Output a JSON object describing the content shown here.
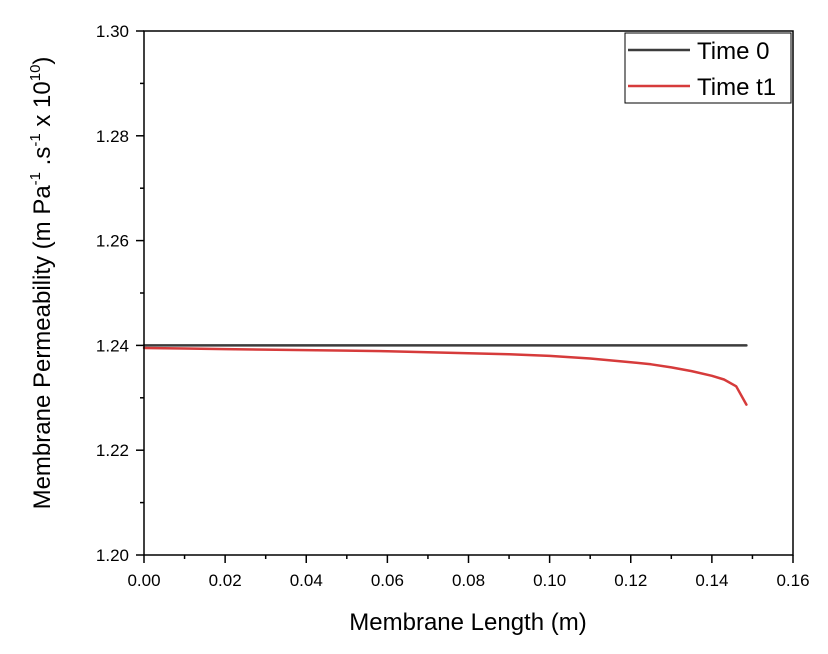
{
  "chart_data": {
    "type": "line",
    "xlabel": "Membrane Length (m)",
    "ylabel": {
      "base": "Membrane Permeability (m Pa",
      "sup1": "-1",
      "mid": " .s",
      "sup2": "-1",
      "tail": " x 10",
      "sup3": "10",
      "close": ")"
    },
    "xlim": [
      0.0,
      0.16
    ],
    "ylim": [
      1.2,
      1.3
    ],
    "x_ticks": [
      "0.00",
      "0.02",
      "0.04",
      "0.06",
      "0.08",
      "0.10",
      "0.12",
      "0.14",
      "0.16"
    ],
    "y_ticks": [
      "1.20",
      "1.22",
      "1.24",
      "1.26",
      "1.28",
      "1.30"
    ],
    "grid": false,
    "legend_position": "top-right",
    "series": [
      {
        "name": "Time 0",
        "color": "#3c3c3c",
        "points": [
          [
            0.0,
            1.24
          ],
          [
            0.1485,
            1.24
          ]
        ]
      },
      {
        "name": "Time t1",
        "color": "#d63b3b",
        "points": [
          [
            0.0,
            1.2395
          ],
          [
            0.01,
            1.2394
          ],
          [
            0.02,
            1.2393
          ],
          [
            0.03,
            1.2392
          ],
          [
            0.04,
            1.2391
          ],
          [
            0.05,
            1.239
          ],
          [
            0.06,
            1.2389
          ],
          [
            0.07,
            1.2387
          ],
          [
            0.08,
            1.2385
          ],
          [
            0.09,
            1.2383
          ],
          [
            0.1,
            1.238
          ],
          [
            0.11,
            1.2375
          ],
          [
            0.12,
            1.2368
          ],
          [
            0.125,
            1.2364
          ],
          [
            0.13,
            1.2358
          ],
          [
            0.135,
            1.2351
          ],
          [
            0.14,
            1.2342
          ],
          [
            0.143,
            1.2335
          ],
          [
            0.146,
            1.2322
          ],
          [
            0.1485,
            1.2287
          ]
        ]
      }
    ]
  }
}
